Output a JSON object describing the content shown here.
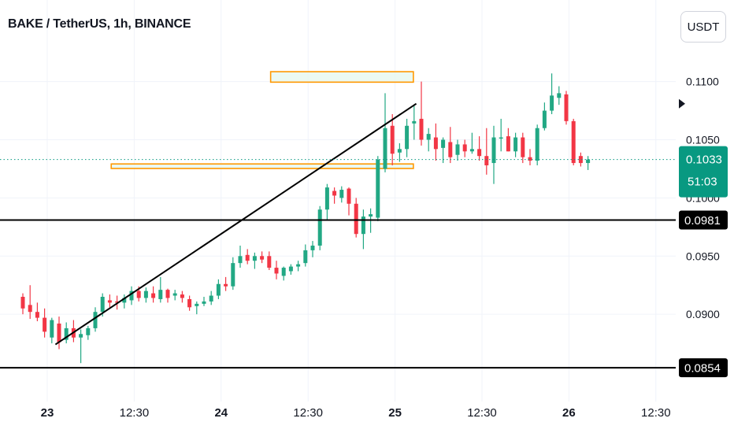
{
  "header": {
    "title": "BAKE / TetherUS, 1h, BINANCE",
    "currency": "USDT"
  },
  "price_badge": {
    "price": "0.1033",
    "countdown": "51:03",
    "color": "#089981"
  },
  "colors": {
    "up": "#22a884",
    "down": "#f23645",
    "zone": "#ff9800",
    "zone_fill": "#e6f7ef",
    "grid": "#f0f3fa",
    "text": "#131722",
    "line": "#000000"
  },
  "chart_data": {
    "type": "candlestick",
    "symbol": "BAKE / TetherUS",
    "interval": "1h",
    "exchange": "BINANCE",
    "y_ticks": [
      "0.1100",
      "0.1050",
      "0.1000",
      "0.0950",
      "0.0900"
    ],
    "x_ticks": [
      {
        "label": "23",
        "bold": true
      },
      {
        "label": "12:30",
        "bold": false
      },
      {
        "label": "24",
        "bold": true
      },
      {
        "label": "12:30",
        "bold": false
      },
      {
        "label": "25",
        "bold": true
      },
      {
        "label": "12:30",
        "bold": false
      },
      {
        "label": "26",
        "bold": true
      },
      {
        "label": "12:30",
        "bold": false
      }
    ],
    "ylim": [
      0.0825,
      0.1162
    ],
    "last_price": 0.1033,
    "horizontal_levels": [
      {
        "price": 0.0981,
        "label": "0.0981"
      },
      {
        "price": 0.0854,
        "label": "0.0854"
      }
    ],
    "zones": [
      {
        "type": "resistance",
        "price_low": 0.10995,
        "price_high": 0.11085,
        "start_hour": 31.7,
        "end_hour": 51.4
      },
      {
        "type": "support",
        "price_low": 0.10253,
        "price_high": 0.10292,
        "start_hour": 9.7,
        "end_hour": 51.4
      }
    ],
    "trendline": {
      "start": {
        "hour": 2.0,
        "price": 0.0874
      },
      "end": {
        "hour": 51.8,
        "price": 0.1081
      }
    },
    "candles_first_hour": -2.5,
    "candles": [
      [
        0.0915,
        0.0918,
        0.09,
        0.0905
      ],
      [
        0.0908,
        0.0925,
        0.0896,
        0.0902
      ],
      [
        0.0902,
        0.091,
        0.0894,
        0.0897
      ],
      [
        0.0897,
        0.0905,
        0.088,
        0.0885
      ],
      [
        0.088,
        0.0897,
        0.0875,
        0.0895
      ],
      [
        0.0892,
        0.0898,
        0.087,
        0.0876
      ],
      [
        0.0878,
        0.0893,
        0.0875,
        0.0888
      ],
      [
        0.0888,
        0.0895,
        0.0876,
        0.088
      ],
      [
        0.088,
        0.0887,
        0.0858,
        0.0883
      ],
      [
        0.0882,
        0.089,
        0.0878,
        0.0888
      ],
      [
        0.0888,
        0.0906,
        0.0885,
        0.0902
      ],
      [
        0.0902,
        0.0918,
        0.0898,
        0.0915
      ],
      [
        0.0912,
        0.0917,
        0.0906,
        0.091
      ],
      [
        0.0911,
        0.0916,
        0.0904,
        0.091
      ],
      [
        0.091,
        0.0917,
        0.0905,
        0.0914
      ],
      [
        0.0912,
        0.0924,
        0.0908,
        0.092
      ],
      [
        0.092,
        0.0924,
        0.0911,
        0.0914
      ],
      [
        0.0914,
        0.0923,
        0.091,
        0.092
      ],
      [
        0.0918,
        0.0924,
        0.091,
        0.0914
      ],
      [
        0.0913,
        0.0932,
        0.091,
        0.0921
      ],
      [
        0.0921,
        0.0922,
        0.091,
        0.0914
      ],
      [
        0.0916,
        0.0921,
        0.0912,
        0.0918
      ],
      [
        0.0917,
        0.092,
        0.091,
        0.0914
      ],
      [
        0.0913,
        0.0916,
        0.0903,
        0.0906
      ],
      [
        0.0907,
        0.0911,
        0.09,
        0.0909
      ],
      [
        0.0909,
        0.0915,
        0.0907,
        0.0911
      ],
      [
        0.0911,
        0.092,
        0.0908,
        0.0916
      ],
      [
        0.0916,
        0.093,
        0.0913,
        0.0926
      ],
      [
        0.0926,
        0.0932,
        0.092,
        0.0924
      ],
      [
        0.0924,
        0.0949,
        0.0921,
        0.0944
      ],
      [
        0.0944,
        0.0959,
        0.094,
        0.095
      ],
      [
        0.0951,
        0.0956,
        0.0943,
        0.0946
      ],
      [
        0.0946,
        0.0953,
        0.0939,
        0.095
      ],
      [
        0.095,
        0.0954,
        0.0944,
        0.0947
      ],
      [
        0.095,
        0.0954,
        0.0938,
        0.094
      ],
      [
        0.094,
        0.0946,
        0.093,
        0.0935
      ],
      [
        0.0933,
        0.0941,
        0.0929,
        0.094
      ],
      [
        0.0937,
        0.0943,
        0.0934,
        0.0941
      ],
      [
        0.0941,
        0.0946,
        0.0937,
        0.0943
      ],
      [
        0.0944,
        0.096,
        0.0941,
        0.0955
      ],
      [
        0.0955,
        0.0963,
        0.0949,
        0.0959
      ],
      [
        0.0959,
        0.0993,
        0.0955,
        0.099
      ],
      [
        0.099,
        0.1012,
        0.0981,
        0.1009
      ],
      [
        0.1006,
        0.1009,
        0.0995,
        0.1002
      ],
      [
        0.1,
        0.101,
        0.0996,
        0.1007
      ],
      [
        0.1008,
        0.1009,
        0.0985,
        0.0995
      ],
      [
        0.0995,
        0.1,
        0.0966,
        0.0969
      ],
      [
        0.0969,
        0.099,
        0.0956,
        0.0984
      ],
      [
        0.0984,
        0.0991,
        0.097,
        0.0986
      ],
      [
        0.0983,
        0.1036,
        0.098,
        0.1033
      ],
      [
        0.1025,
        0.109,
        0.1022,
        0.106
      ],
      [
        0.1062,
        0.1072,
        0.1028,
        0.1038
      ],
      [
        0.1039,
        0.1047,
        0.1031,
        0.1042
      ],
      [
        0.1042,
        0.1068,
        0.1035,
        0.1062
      ],
      [
        0.1064,
        0.108,
        0.105,
        0.1066
      ],
      [
        0.1068,
        0.11,
        0.1045,
        0.105
      ],
      [
        0.105,
        0.106,
        0.104,
        0.1055
      ],
      [
        0.1052,
        0.1064,
        0.1032,
        0.1042
      ],
      [
        0.1043,
        0.1052,
        0.103,
        0.105
      ],
      [
        0.1048,
        0.1061,
        0.103,
        0.1035
      ],
      [
        0.1037,
        0.105,
        0.1032,
        0.1046
      ],
      [
        0.1046,
        0.105,
        0.1035,
        0.104
      ],
      [
        0.104,
        0.1056,
        0.1038,
        0.1042
      ],
      [
        0.1042,
        0.1053,
        0.1032,
        0.1036
      ],
      [
        0.1036,
        0.106,
        0.102,
        0.1028
      ],
      [
        0.103,
        0.1062,
        0.1012,
        0.1052
      ],
      [
        0.1052,
        0.1068,
        0.104,
        0.1052
      ],
      [
        0.1053,
        0.106,
        0.104,
        0.104
      ],
      [
        0.104,
        0.1056,
        0.1035,
        0.1052
      ],
      [
        0.1052,
        0.1056,
        0.103,
        0.1035
      ],
      [
        0.1035,
        0.1042,
        0.1028,
        0.1032
      ],
      [
        0.1032,
        0.1063,
        0.1028,
        0.106
      ],
      [
        0.106,
        0.1082,
        0.1058,
        0.1075
      ],
      [
        0.1075,
        0.1107,
        0.1072,
        0.1088
      ],
      [
        0.1086,
        0.1096,
        0.108,
        0.109
      ],
      [
        0.1089,
        0.1092,
        0.1063,
        0.1066
      ],
      [
        0.1066,
        0.1068,
        0.1028,
        0.103
      ],
      [
        0.1036,
        0.1039,
        0.1027,
        0.103
      ],
      [
        0.103,
        0.1036,
        0.1024,
        0.1033
      ]
    ]
  }
}
